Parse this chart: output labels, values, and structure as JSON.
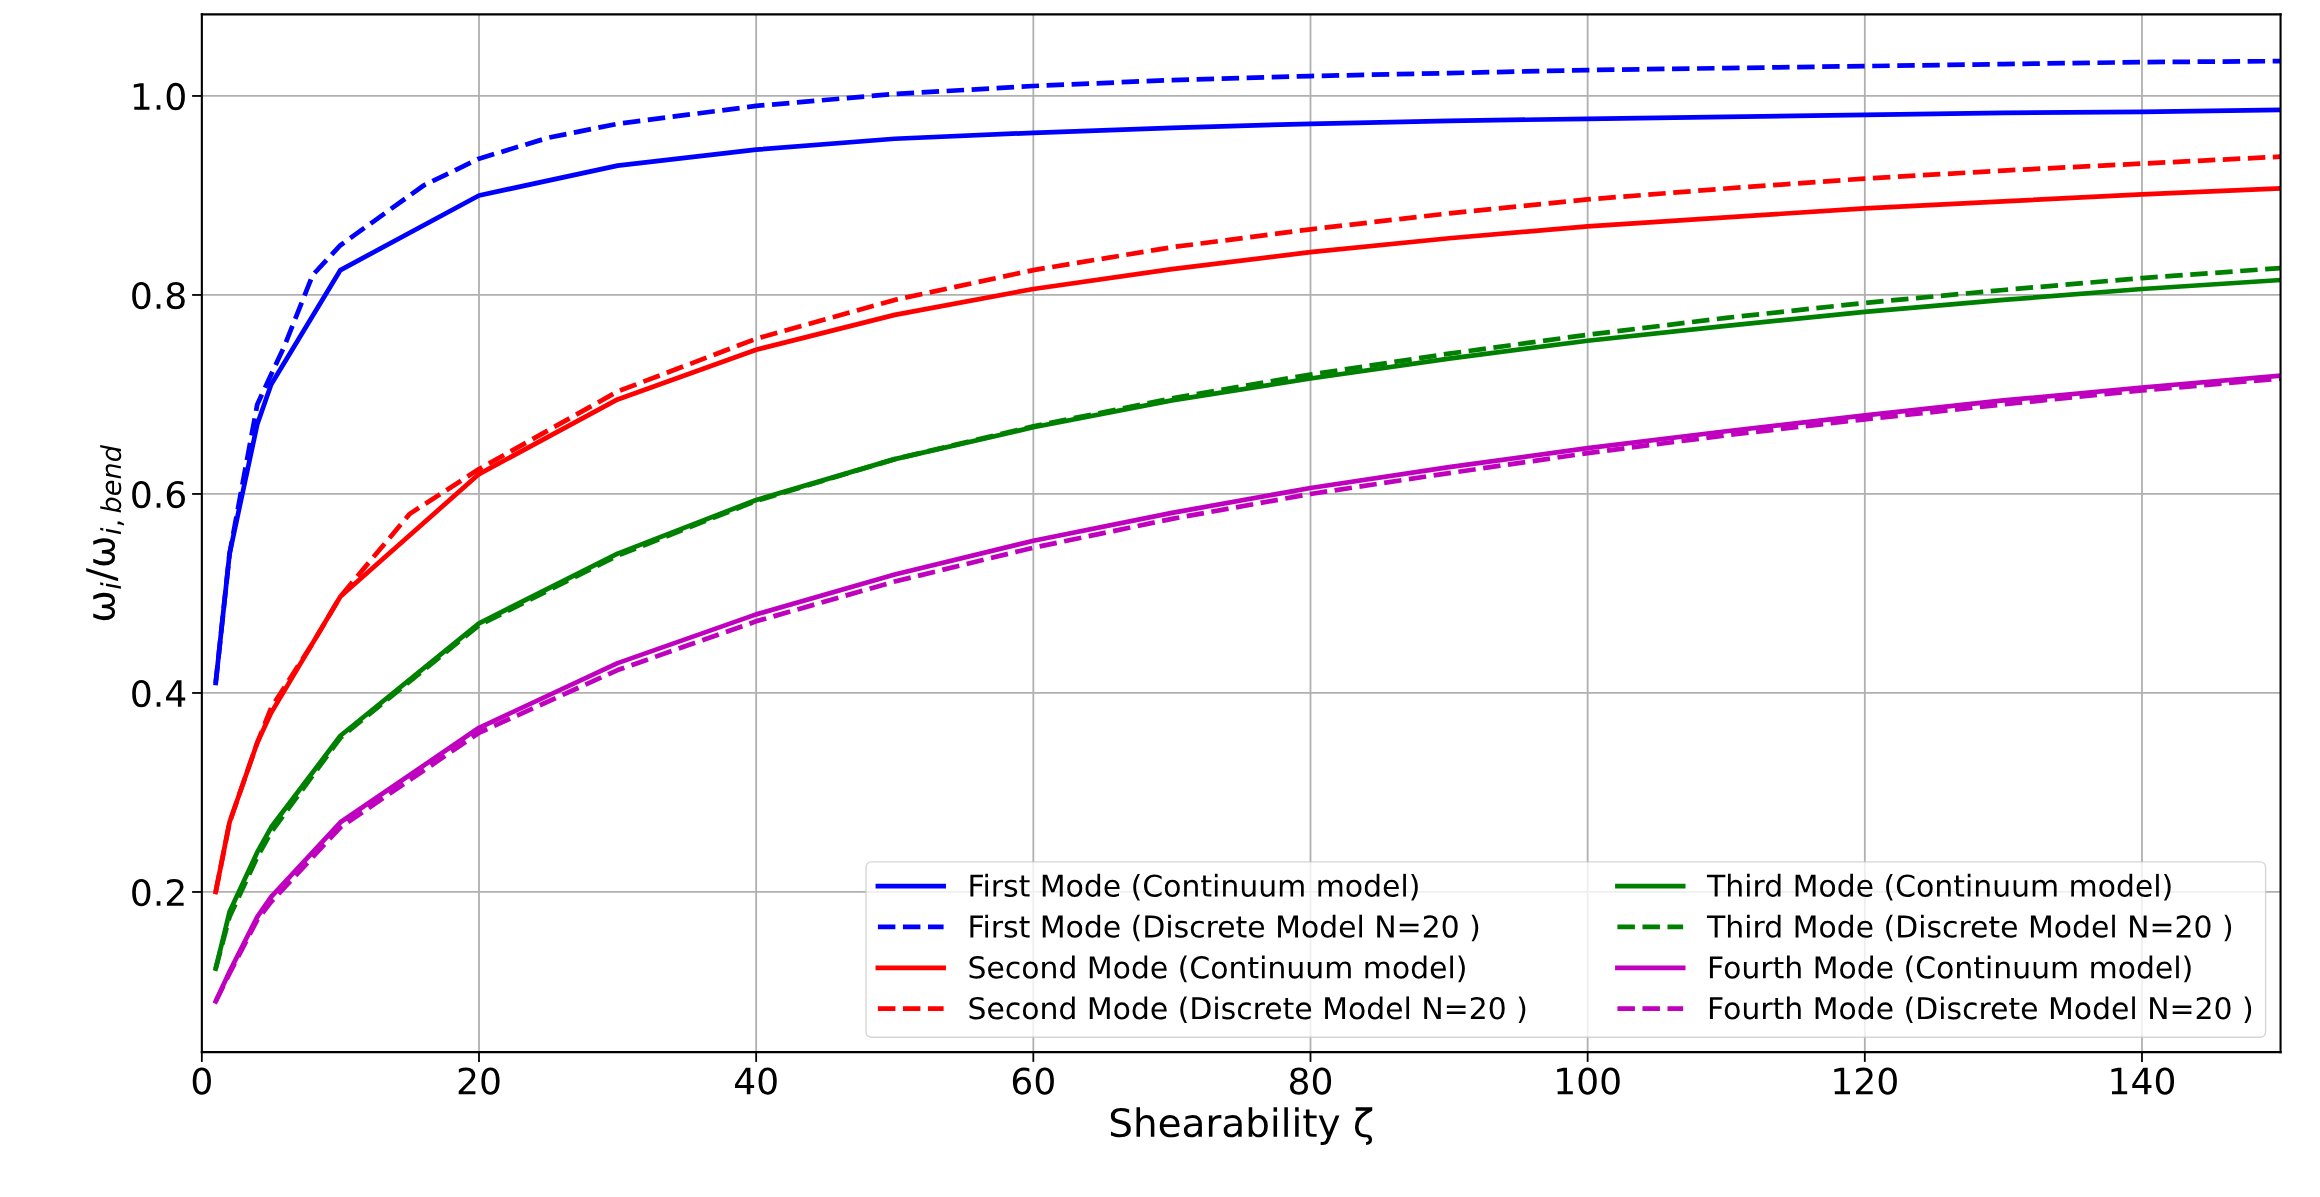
{
  "chart_data": {
    "type": "line",
    "xlabel": "Shearability ζ",
    "ylabel": "ω$_{i}$/ω$_{i,bend}$",
    "xlim": [
      0,
      150
    ],
    "ylim": [
      0.039,
      1.082
    ],
    "xticks": [
      0,
      20,
      40,
      60,
      80,
      100,
      120,
      140
    ],
    "yticks": [
      0.2,
      0.4,
      0.6,
      0.8,
      {
        "value": 1,
        "label": "1.0"
      }
    ],
    "grid": true,
    "legend": "bottom right",
    "marker": "none",
    "series": [
      {
        "name": "First Mode (Continuum model)",
        "color": "#0000ff",
        "line_style": "solid",
        "x": [
          1,
          2,
          4,
          5,
          10,
          20,
          30,
          40,
          50,
          60,
          70,
          80,
          90,
          100,
          110,
          120,
          130,
          140,
          150
        ],
        "values": [
          0.41,
          0.54,
          0.67,
          0.71,
          0.825,
          0.9,
          0.93,
          0.946,
          0.957,
          0.963,
          0.968,
          0.972,
          0.975,
          0.977,
          0.979,
          0.981,
          0.983,
          0.984,
          0.986
        ]
      },
      {
        "name": "First Mode (Discrete Model N=20 )",
        "color": "#0000ff",
        "line_style": "dashed",
        "x": [
          1,
          2,
          4,
          6,
          8,
          10,
          16,
          20,
          25,
          30,
          40,
          50,
          60,
          70,
          80,
          90,
          100,
          110,
          120,
          130,
          140,
          150
        ],
        "values": [
          0.41,
          0.54,
          0.69,
          0.75,
          0.82,
          0.85,
          0.91,
          0.937,
          0.958,
          0.972,
          0.99,
          1.002,
          1.01,
          1.016,
          1.02,
          1.023,
          1.026,
          1.028,
          1.03,
          1.032,
          1.034,
          1.035
        ]
      },
      {
        "name": "Second Mode (Continuum model)",
        "color": "#ff0000",
        "line_style": "solid",
        "x": [
          1,
          2,
          4,
          5,
          10,
          20,
          30,
          40,
          50,
          60,
          70,
          80,
          90,
          100,
          110,
          120,
          130,
          140,
          150
        ],
        "values": [
          0.2,
          0.27,
          0.35,
          0.38,
          0.497,
          0.62,
          0.695,
          0.745,
          0.78,
          0.806,
          0.826,
          0.843,
          0.857,
          0.869,
          0.878,
          0.887,
          0.894,
          0.901,
          0.907
        ]
      },
      {
        "name": "Second Mode (Discrete Model N=20 )",
        "color": "#ff0000",
        "line_style": "dashed",
        "x": [
          1,
          2,
          4,
          5,
          8,
          10,
          15,
          20,
          30,
          40,
          50,
          60,
          70,
          80,
          90,
          100,
          110,
          120,
          130,
          140,
          150
        ],
        "values": [
          0.2,
          0.27,
          0.35,
          0.385,
          0.45,
          0.497,
          0.58,
          0.625,
          0.703,
          0.756,
          0.795,
          0.825,
          0.848,
          0.866,
          0.882,
          0.896,
          0.907,
          0.917,
          0.925,
          0.932,
          0.939
        ]
      },
      {
        "name": "Third Mode (Continuum model)",
        "color": "#008000",
        "line_style": "solid",
        "x": [
          1,
          2,
          4,
          5,
          10,
          20,
          30,
          40,
          50,
          60,
          70,
          80,
          90,
          100,
          110,
          120,
          130,
          140,
          150
        ],
        "values": [
          0.123,
          0.18,
          0.24,
          0.265,
          0.357,
          0.47,
          0.54,
          0.594,
          0.635,
          0.667,
          0.694,
          0.716,
          0.736,
          0.754,
          0.769,
          0.783,
          0.795,
          0.806,
          0.815
        ]
      },
      {
        "name": "Third Mode (Discrete Model N=20 )",
        "color": "#008000",
        "line_style": "dashed",
        "x": [
          1,
          2,
          4,
          5,
          10,
          20,
          30,
          40,
          50,
          60,
          70,
          80,
          90,
          100,
          110,
          120,
          130,
          140,
          150
        ],
        "values": [
          0.123,
          0.175,
          0.235,
          0.26,
          0.355,
          0.468,
          0.538,
          0.593,
          0.635,
          0.668,
          0.696,
          0.72,
          0.741,
          0.76,
          0.777,
          0.792,
          0.805,
          0.817,
          0.827
        ]
      },
      {
        "name": "Fourth Mode (Continuum model)",
        "color": "#bf00bf",
        "line_style": "solid",
        "x": [
          1,
          2,
          4,
          5,
          10,
          20,
          30,
          40,
          50,
          60,
          70,
          80,
          90,
          100,
          110,
          120,
          130,
          140,
          150
        ],
        "values": [
          0.09,
          0.12,
          0.175,
          0.195,
          0.27,
          0.365,
          0.43,
          0.479,
          0.519,
          0.553,
          0.581,
          0.606,
          0.627,
          0.646,
          0.663,
          0.679,
          0.694,
          0.707,
          0.719
        ]
      },
      {
        "name": "Fourth Mode (Discrete Model N=20 )",
        "color": "#bf00bf",
        "line_style": "dashed",
        "x": [
          1,
          2,
          4,
          5,
          10,
          20,
          30,
          40,
          50,
          60,
          70,
          80,
          90,
          100,
          110,
          120,
          130,
          140,
          150
        ],
        "values": [
          0.09,
          0.118,
          0.172,
          0.19,
          0.265,
          0.36,
          0.423,
          0.472,
          0.512,
          0.546,
          0.575,
          0.6,
          0.621,
          0.641,
          0.659,
          0.675,
          0.69,
          0.704,
          0.716
        ]
      }
    ]
  }
}
